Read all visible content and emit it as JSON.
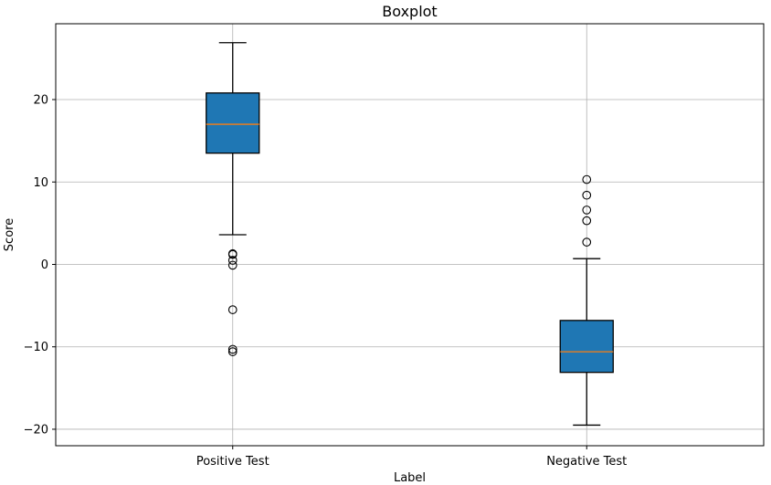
{
  "chart_data": {
    "type": "boxplot",
    "title": "Boxplot",
    "xlabel": "Label",
    "ylabel": "Score",
    "ylim": [
      -22,
      29.2
    ],
    "yticks": [
      -20,
      -10,
      0,
      10,
      20
    ],
    "grid": true,
    "categories": [
      "Positive Test",
      "Negative Test"
    ],
    "boxes": [
      {
        "label": "Positive Test",
        "whisker_low": 3.6,
        "q1": 13.5,
        "median": 17.0,
        "q3": 20.8,
        "whisker_high": 26.9,
        "outliers": [
          1.3,
          1.2,
          0.5,
          -0.1,
          -5.5,
          -10.3,
          -10.6
        ]
      },
      {
        "label": "Negative Test",
        "whisker_low": -19.5,
        "q1": -13.1,
        "median": -10.6,
        "q3": -6.8,
        "whisker_high": 0.7,
        "outliers": [
          2.7,
          5.3,
          6.6,
          8.4,
          10.3
        ]
      }
    ],
    "colors": {
      "box_fill": "#1f77b4",
      "median": "#ff7f0e",
      "line": "#000000",
      "grid": "#b0b0b0"
    }
  }
}
